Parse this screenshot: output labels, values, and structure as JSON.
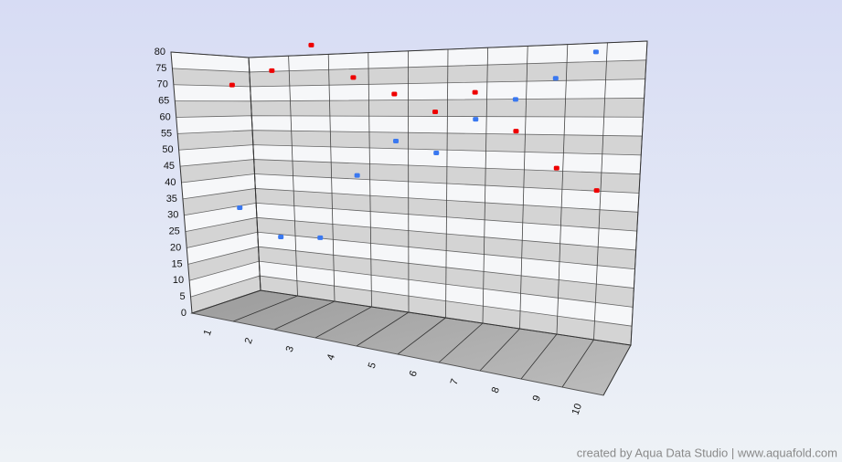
{
  "chart_data": {
    "type": "scatter3d",
    "categories": [
      "1",
      "2",
      "3",
      "4",
      "5",
      "6",
      "7",
      "8",
      "9",
      "10"
    ],
    "series": [
      {
        "color": "#ee0000",
        "values": [
          70,
          74,
          81,
          71,
          66,
          61,
          66,
          56,
          47,
          42
        ]
      },
      {
        "color": "#3a78f0",
        "values": [
          31,
          23,
          24,
          43,
          53,
          50,
          59,
          64,
          69,
          75
        ]
      }
    ],
    "ylim": [
      0,
      80
    ],
    "yticks": [
      0,
      5,
      10,
      15,
      20,
      25,
      30,
      35,
      40,
      45,
      50,
      55,
      60,
      65,
      70,
      75,
      80
    ],
    "grid": true,
    "footer": "created by Aqua Data Studio | www.aquafold.com"
  }
}
